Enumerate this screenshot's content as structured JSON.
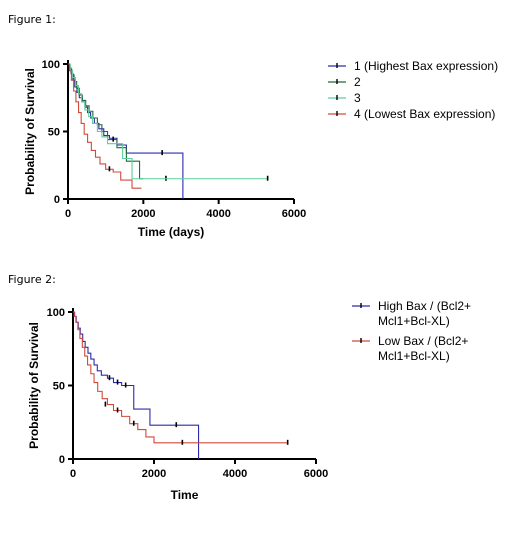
{
  "figure1_label": "Figure 1:",
  "figure2_label": "Figure 2:",
  "chart_data": [
    {
      "type": "line",
      "subtype": "kaplan-meier",
      "title": "",
      "xlabel": "Time (days)",
      "ylabel": "Probability of Survival",
      "xlim": [
        0,
        6000
      ],
      "ylim": [
        0,
        100
      ],
      "xticks": [
        0,
        2000,
        4000,
        6000
      ],
      "yticks": [
        0,
        50,
        100
      ],
      "legend_position": "right",
      "series": [
        {
          "name": "1 (Highest Bax expression)",
          "color": "#2b2bb0",
          "x": [
            0,
            40,
            80,
            130,
            180,
            240,
            300,
            380,
            450,
            520,
            600,
            700,
            820,
            950,
            1100,
            1300,
            1550,
            3050,
            3050
          ],
          "y": [
            100,
            97,
            93,
            88,
            83,
            79,
            75,
            72,
            68,
            64,
            60,
            56,
            52,
            47,
            45,
            40,
            34,
            34,
            0
          ],
          "censor_x": [
            2500
          ],
          "censor_y": [
            34
          ]
        },
        {
          "name": "2",
          "color": "#1e6b3a",
          "x": [
            0,
            50,
            100,
            160,
            230,
            300,
            380,
            470,
            560,
            660,
            780,
            900,
            1050,
            1150,
            1300,
            1550,
            1900,
            2000
          ],
          "y": [
            100,
            96,
            92,
            87,
            82,
            77,
            73,
            69,
            65,
            60,
            55,
            50,
            44,
            44,
            38,
            28,
            15,
            15
          ],
          "censor_x": [
            1200,
            2600
          ],
          "censor_y": [
            44,
            15
          ]
        },
        {
          "name": "3",
          "color": "#5ccf9a",
          "x": [
            0,
            60,
            120,
            200,
            280,
            360,
            450,
            550,
            650,
            780,
            900,
            1050,
            1200,
            1450,
            1700,
            5300
          ],
          "y": [
            100,
            95,
            90,
            84,
            78,
            72,
            66,
            61,
            56,
            50,
            46,
            41,
            41,
            30,
            15,
            15
          ],
          "censor_x": [
            5300
          ],
          "censor_y": [
            15
          ]
        },
        {
          "name": "4 (Lowest Bax expression)",
          "color": "#d04a3c",
          "x": [
            0,
            40,
            90,
            150,
            210,
            280,
            350,
            430,
            520,
            620,
            730,
            850,
            1000,
            1200,
            1400,
            1700,
            1950
          ],
          "y": [
            100,
            95,
            88,
            80,
            72,
            64,
            56,
            48,
            42,
            36,
            31,
            26,
            22,
            20,
            14,
            8,
            8
          ],
          "censor_x": [
            1100
          ],
          "censor_y": [
            22
          ]
        }
      ]
    },
    {
      "type": "line",
      "subtype": "kaplan-meier",
      "title": "",
      "xlabel": "Time",
      "ylabel": "Probability of Survival",
      "xlim": [
        0,
        6000
      ],
      "ylim": [
        0,
        100
      ],
      "xticks": [
        0,
        2000,
        4000,
        6000
      ],
      "yticks": [
        0,
        50,
        100
      ],
      "legend_position": "right",
      "series": [
        {
          "name": "High Bax / (Bcl2+ Mcl1+Bcl-XL)",
          "name_lines": [
            "High Bax / (Bcl2+",
            "Mcl1+Bcl-XL)"
          ],
          "color": "#2b2bb0",
          "x": [
            0,
            40,
            80,
            130,
            180,
            240,
            300,
            370,
            440,
            520,
            600,
            700,
            850,
            1000,
            1200,
            1500,
            1900,
            3100,
            3100
          ],
          "y": [
            100,
            97,
            93,
            89,
            85,
            80,
            76,
            72,
            68,
            64,
            60,
            57,
            55,
            52,
            50,
            34,
            23,
            23,
            0
          ],
          "censor_x": [
            900,
            1100,
            1300,
            2550
          ],
          "censor_y": [
            55,
            52,
            50,
            23
          ]
        },
        {
          "name": "Low Bax / (Bcl2+ Mcl1+Bcl-XL)",
          "name_lines": [
            "Low Bax / (Bcl2+",
            "Mcl1+Bcl-XL)"
          ],
          "color": "#d04a3c",
          "x": [
            0,
            30,
            70,
            120,
            170,
            230,
            290,
            360,
            440,
            520,
            610,
            720,
            850,
            1000,
            1200,
            1400,
            1600,
            1800,
            2000,
            5300
          ],
          "y": [
            100,
            97,
            93,
            88,
            82,
            76,
            70,
            64,
            58,
            52,
            46,
            41,
            37,
            33,
            29,
            24,
            20,
            15,
            11,
            11
          ],
          "censor_x": [
            800,
            1100,
            1500,
            2700,
            5300
          ],
          "censor_y": [
            37,
            33,
            24,
            11,
            11
          ]
        }
      ]
    }
  ]
}
